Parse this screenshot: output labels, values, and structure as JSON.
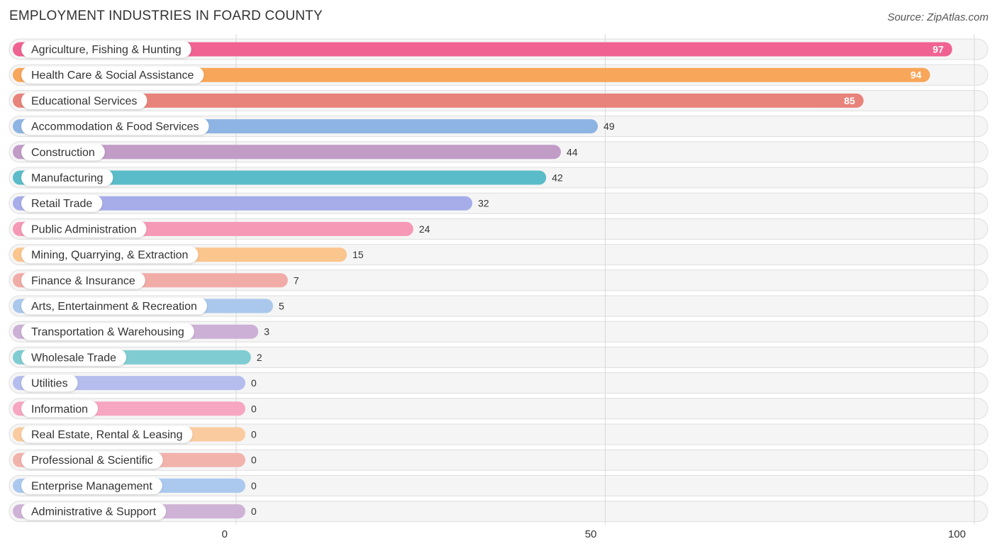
{
  "header": {
    "title": "EMPLOYMENT INDUSTRIES IN FOARD COUNTY",
    "source": "Source: ZipAtlas.com"
  },
  "chart_data": {
    "type": "bar",
    "orientation": "horizontal",
    "title": "EMPLOYMENT INDUSTRIES IN FOARD COUNTY",
    "xlabel": "",
    "ylabel": "",
    "xlim": [
      0,
      100
    ],
    "ticks": [
      0,
      50,
      100
    ],
    "grid": true,
    "legend": "none",
    "categories": [
      "Agriculture, Fishing & Hunting",
      "Health Care & Social Assistance",
      "Educational Services",
      "Accommodation & Food Services",
      "Construction",
      "Manufacturing",
      "Retail Trade",
      "Public Administration",
      "Mining, Quarrying, & Extraction",
      "Finance & Insurance",
      "Arts, Entertainment & Recreation",
      "Transportation & Warehousing",
      "Wholesale Trade",
      "Utilities",
      "Information",
      "Real Estate, Rental & Leasing",
      "Professional & Scientific",
      "Enterprise Management",
      "Administrative & Support"
    ],
    "values": [
      97,
      94,
      85,
      49,
      44,
      42,
      32,
      24,
      15,
      7,
      5,
      3,
      2,
      0,
      0,
      0,
      0,
      0,
      0
    ],
    "colors": [
      "#f06292",
      "#f8a65a",
      "#e8837b",
      "#8eb4e3",
      "#c09cc7",
      "#5bbcc9",
      "#a6ade9",
      "#f599b6",
      "#fbc58e",
      "#f1aca7",
      "#a9c8ec",
      "#cdb0d6",
      "#7fcdd2",
      "#b5bdee",
      "#f7a6c2",
      "#fbcba0",
      "#f2b3ad",
      "#abc9ee",
      "#cfb3d6"
    ]
  }
}
